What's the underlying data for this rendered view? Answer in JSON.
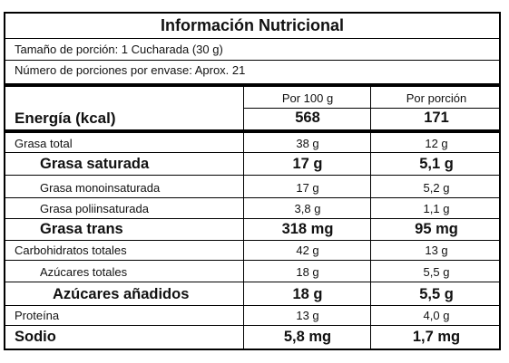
{
  "label": {
    "title": "Información Nutricional",
    "serving_size": "Tamaño de porción: 1 Cucharada (30 g)",
    "servings_per_container": "Número de porciones por envase: Aprox. 21",
    "col_per100": "Por 100 g",
    "col_perportion": "Por porción",
    "energy": {
      "name": "Energía (kcal)",
      "per100": "568",
      "perportion": "171"
    },
    "rows": [
      {
        "name": "Grasa total",
        "per100": "38 g",
        "perportion": "12 g"
      },
      {
        "name": "Grasa saturada",
        "per100": "17 g",
        "perportion": "5,1 g"
      },
      {
        "name": "Grasa monoinsaturada",
        "per100": "17 g",
        "perportion": "5,2 g"
      },
      {
        "name": "Grasa poliinsaturada",
        "per100": "3,8 g",
        "perportion": "1,1 g"
      },
      {
        "name": "Grasa trans",
        "per100": "318 mg",
        "perportion": "95 mg"
      },
      {
        "name": "Carbohidratos totales",
        "per100": "42 g",
        "perportion": "13 g"
      },
      {
        "name": "Azúcares totales",
        "per100": "18 g",
        "perportion": "5,5 g"
      },
      {
        "name": "Azúcares añadidos",
        "per100": "18 g",
        "perportion": "5,5 g"
      },
      {
        "name": "Proteína",
        "per100": "13 g",
        "perportion": "4,0 g"
      },
      {
        "name": "Sodio",
        "per100": "5,8 mg",
        "perportion": "1,7 mg"
      }
    ]
  }
}
